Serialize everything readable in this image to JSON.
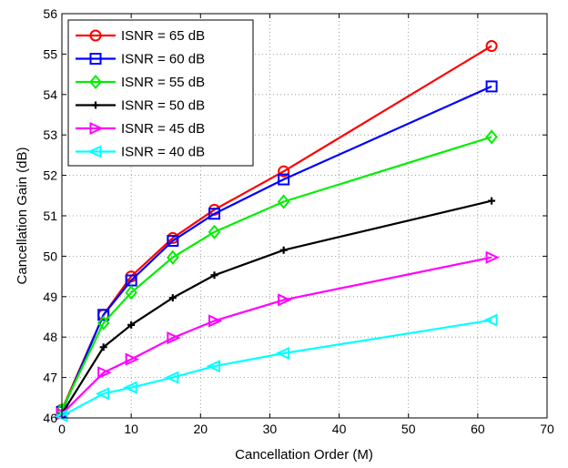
{
  "chart_data": {
    "type": "line",
    "title": "",
    "xlabel": "Cancellation  Order (M)",
    "ylabel": "Cancellation Gain (dB)",
    "xlim": [
      0,
      70
    ],
    "ylim": [
      46,
      56
    ],
    "xticks": [
      0,
      10,
      20,
      30,
      40,
      50,
      60,
      70
    ],
    "yticks": [
      46,
      47,
      48,
      49,
      50,
      51,
      52,
      53,
      54,
      55,
      56
    ],
    "grid": true,
    "legend_position": "top-left",
    "x": [
      0,
      6,
      10,
      16,
      22,
      32,
      62
    ],
    "series": [
      {
        "name": "ISNR = 65   dB",
        "color": "#ff0000",
        "marker": "circle",
        "values": [
          46.2,
          48.55,
          49.5,
          50.45,
          51.15,
          52.1,
          55.2
        ]
      },
      {
        "name": "ISNR = 60   dB",
        "color": "#0000ff",
        "marker": "square",
        "values": [
          46.15,
          48.55,
          49.4,
          50.38,
          51.05,
          51.9,
          54.2
        ]
      },
      {
        "name": "ISNR = 55   dB",
        "color": "#00ee00",
        "marker": "diamond",
        "values": [
          46.2,
          48.35,
          49.1,
          49.97,
          50.6,
          51.35,
          52.95
        ]
      },
      {
        "name": "ISNR = 50   dB",
        "color": "#000000",
        "marker": "plus",
        "values": [
          46.1,
          47.75,
          48.3,
          48.97,
          49.53,
          50.15,
          51.37
        ]
      },
      {
        "name": "ISNR = 45   dB",
        "color": "#ff00ff",
        "marker": "triangle-right",
        "values": [
          46.1,
          47.12,
          47.45,
          47.98,
          48.4,
          48.92,
          49.97
        ]
      },
      {
        "name": "ISNR = 40   dB",
        "color": "#00ffff",
        "marker": "triangle-left",
        "values": [
          46.05,
          46.6,
          46.75,
          47.0,
          47.28,
          47.6,
          48.42
        ]
      }
    ]
  }
}
